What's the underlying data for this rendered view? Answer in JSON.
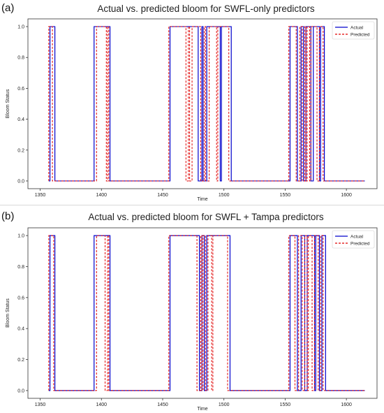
{
  "panels": [
    {
      "letter": "(a)",
      "title": "Actual vs. predicted bloom for SWFL-only predictors"
    },
    {
      "letter": "(b)",
      "title": "Actual vs. predicted bloom for SWFL + Tampa predictors"
    }
  ],
  "chart_data": [
    {
      "type": "line",
      "title": "Actual vs. predicted bloom for SWFL-only predictors",
      "xlabel": "Time",
      "ylabel": "Bloom Status",
      "xlim": [
        1340,
        1625
      ],
      "ylim": [
        -0.05,
        1.05
      ],
      "x_ticks": [
        1350,
        1400,
        1450,
        1500,
        1550,
        1600
      ],
      "y_ticks": [
        0.0,
        0.2,
        0.4,
        0.6,
        0.8,
        1.0
      ],
      "legend_position": "top-right",
      "series": [
        {
          "name": "Actual",
          "color": "#0000cc",
          "style": "solid",
          "segments": [
            [
              1358,
              1362
            ],
            [
              1394,
              1407
            ],
            [
              1456,
              1479
            ],
            [
              1482,
              1483
            ],
            [
              1486,
              1497
            ],
            [
              1498,
              1506
            ],
            [
              1554,
              1560
            ],
            [
              1563,
              1565
            ],
            [
              1567,
              1571
            ],
            [
              1573,
              1578
            ],
            [
              1579,
              1582
            ]
          ],
          "x_range": [
            1357,
            1615
          ]
        },
        {
          "name": "Predicted",
          "color": "#e00000",
          "style": "dashed",
          "segments": [
            [
              1357,
              1360
            ],
            [
              1396,
              1404
            ],
            [
              1405,
              1406
            ],
            [
              1455,
              1469
            ],
            [
              1471,
              1472
            ],
            [
              1474,
              1481
            ],
            [
              1484,
              1485
            ],
            [
              1488,
              1494
            ],
            [
              1495,
              1504
            ],
            [
              1553,
              1559
            ],
            [
              1562,
              1564
            ],
            [
              1566,
              1567
            ],
            [
              1568,
              1570
            ],
            [
              1571,
              1576
            ],
            [
              1578,
              1581
            ]
          ],
          "x_range": [
            1357,
            1615
          ]
        }
      ]
    },
    {
      "type": "line",
      "title": "Actual vs. predicted bloom for SWFL + Tampa predictors",
      "xlabel": "Time",
      "ylabel": "Bloom Status",
      "xlim": [
        1340,
        1625
      ],
      "ylim": [
        -0.05,
        1.05
      ],
      "x_ticks": [
        1350,
        1400,
        1450,
        1500,
        1550,
        1600
      ],
      "y_ticks": [
        0.0,
        0.2,
        0.4,
        0.6,
        0.8,
        1.0
      ],
      "legend_position": "top-right",
      "series": [
        {
          "name": "Actual",
          "color": "#0000cc",
          "style": "solid",
          "segments": [
            [
              1358,
              1362
            ],
            [
              1394,
              1407
            ],
            [
              1456,
              1480
            ],
            [
              1482,
              1484
            ],
            [
              1486,
              1505
            ],
            [
              1554,
              1560
            ],
            [
              1563,
              1566
            ],
            [
              1568,
              1574
            ],
            [
              1575,
              1578
            ],
            [
              1580,
              1583
            ]
          ],
          "x_range": [
            1357,
            1615
          ]
        },
        {
          "name": "Predicted",
          "color": "#e00000",
          "style": "dashed",
          "segments": [
            [
              1357,
              1361
            ],
            [
              1396,
              1403
            ],
            [
              1405,
              1406
            ],
            [
              1455,
              1478
            ],
            [
              1481,
              1482
            ],
            [
              1483,
              1485
            ],
            [
              1487,
              1490
            ],
            [
              1491,
              1503
            ],
            [
              1553,
              1558
            ],
            [
              1561,
              1564
            ],
            [
              1566,
              1568
            ],
            [
              1569,
              1572
            ],
            [
              1574,
              1577
            ],
            [
              1579,
              1581
            ]
          ],
          "x_range": [
            1357,
            1615
          ]
        }
      ]
    }
  ]
}
